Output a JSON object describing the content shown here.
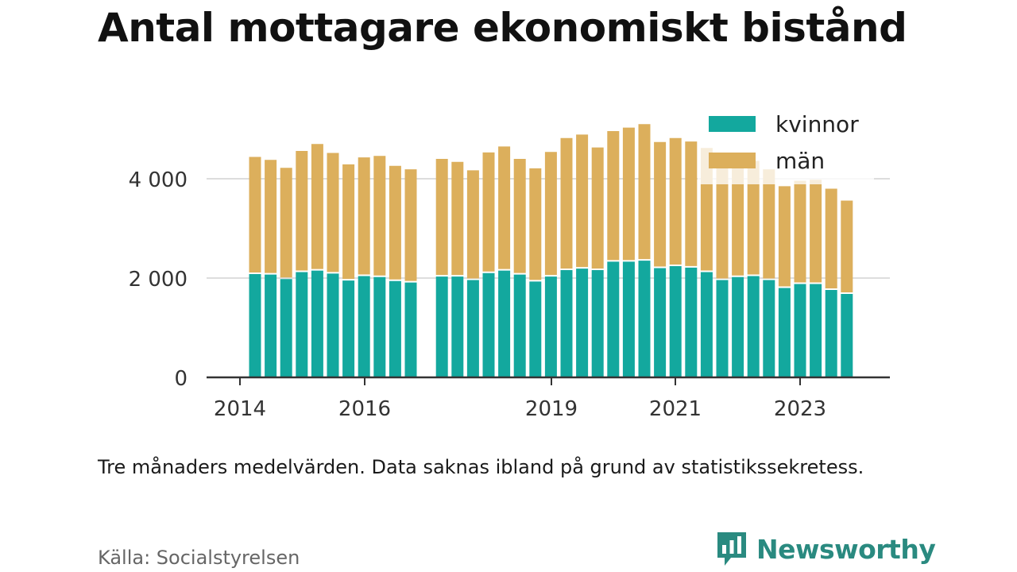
{
  "title": "Antal mottagare ekonomiskt bistånd",
  "note": "Tre månaders medelvärden. Data saknas ibland på grund av statistikssekretess.",
  "source": "Källa: Socialstyrelsen",
  "brand": {
    "name": "Newsworthy",
    "logo_icon": "newsworthy-chat-bars-icon"
  },
  "colors": {
    "kvinnor": "#13a89e",
    "man": "#dcaf5c",
    "axis": "#333333",
    "grid": "#dddddd",
    "brand": "#2a8a80"
  },
  "chart_data": {
    "type": "bar",
    "stacked": true,
    "x_tick_labels": [
      "2014",
      "2016",
      "2019",
      "2021",
      "2023"
    ],
    "y_ticks": [
      0,
      2000,
      4000
    ],
    "y_tick_labels": [
      "0",
      "2 000",
      "4 000"
    ],
    "ylim": [
      0,
      5200
    ],
    "grid": "horizontal",
    "legend_position": "top-right",
    "legend": [
      "kvinnor",
      "män"
    ],
    "x": [
      "2014-Q2",
      "2014-Q3",
      "2014-Q4",
      "2015-Q1",
      "2015-Q2",
      "2015-Q3",
      "2015-Q4",
      "2016-Q1",
      "2016-Q2",
      "2016-Q3",
      "2016-Q4",
      "2017-Q1",
      "2017-Q2",
      "2017-Q3",
      "2017-Q4",
      "2018-Q1",
      "2018-Q2",
      "2018-Q3",
      "2018-Q4",
      "2019-Q1",
      "2019-Q2",
      "2019-Q3",
      "2019-Q4",
      "2020-Q1",
      "2020-Q2",
      "2020-Q3",
      "2020-Q4",
      "2021-Q1",
      "2021-Q2",
      "2021-Q3",
      "2021-Q4",
      "2022-Q1",
      "2022-Q2",
      "2022-Q3",
      "2022-Q4",
      "2023-Q1",
      "2023-Q2",
      "2023-Q3",
      "2023-Q4",
      "2024-Q1"
    ],
    "series": [
      {
        "name": "kvinnor",
        "values": [
          2080,
          2070,
          1980,
          2120,
          2150,
          2090,
          1950,
          2040,
          2020,
          1940,
          1910,
          null,
          2030,
          2030,
          1960,
          2100,
          2150,
          2070,
          1930,
          2030,
          2160,
          2190,
          2160,
          2330,
          2330,
          2350,
          2200,
          2240,
          2210,
          2120,
          1960,
          2020,
          2040,
          1960,
          1800,
          1880,
          1880,
          1760,
          1680,
          null
        ]
      },
      {
        "name": "män",
        "values": [
          2360,
          2310,
          2240,
          2440,
          2550,
          2430,
          2340,
          2390,
          2440,
          2320,
          2280,
          null,
          2370,
          2310,
          2210,
          2430,
          2500,
          2330,
          2280,
          2510,
          2660,
          2700,
          2470,
          2630,
          2700,
          2750,
          2540,
          2580,
          2540,
          2500,
          2300,
          2320,
          2320,
          2230,
          2050,
          2080,
          2100,
          2040,
          1880,
          null
        ]
      }
    ]
  }
}
